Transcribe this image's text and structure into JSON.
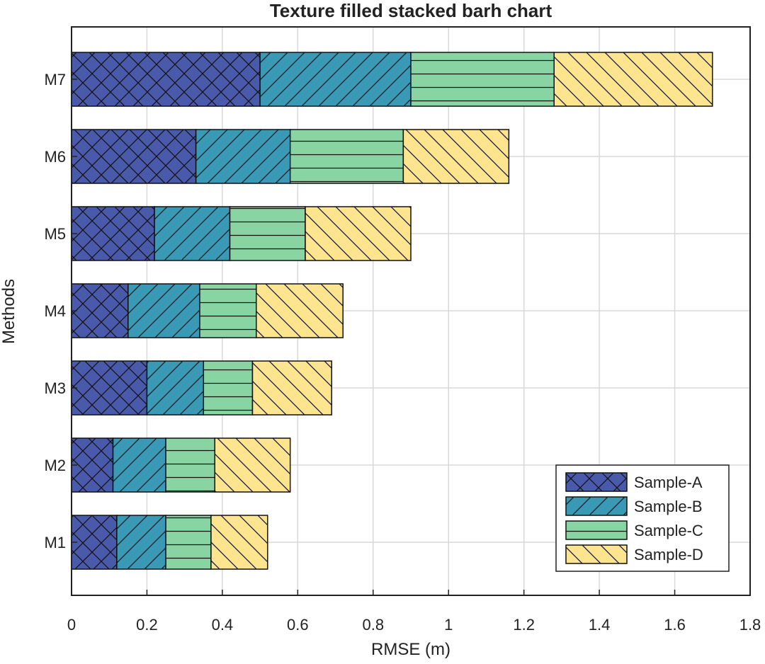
{
  "chart_data": {
    "type": "bar",
    "orientation": "horizontal",
    "stacked": true,
    "title": "Texture filled stacked barh chart",
    "xlabel": "RMSE (m)",
    "ylabel": "Methods",
    "xlim": [
      0,
      1.8
    ],
    "xticks": [
      "0",
      "0.2",
      "0.4",
      "0.6",
      "0.8",
      "1",
      "1.2",
      "1.4",
      "1.6",
      "1.8"
    ],
    "categories": [
      "M1",
      "M2",
      "M3",
      "M4",
      "M5",
      "M6",
      "M7"
    ],
    "grid": true,
    "legend_position": "bottom-right",
    "series": [
      {
        "name": "Sample-A",
        "color": "#4a5aaa",
        "pattern": "crosshatch",
        "values": [
          0.12,
          0.11,
          0.2,
          0.15,
          0.22,
          0.33,
          0.5
        ]
      },
      {
        "name": "Sample-B",
        "color": "#3a9ab6",
        "pattern": "forward-diagonal",
        "values": [
          0.13,
          0.14,
          0.15,
          0.19,
          0.2,
          0.25,
          0.4
        ]
      },
      {
        "name": "Sample-C",
        "color": "#88d4a2",
        "pattern": "horizontal",
        "values": [
          0.12,
          0.13,
          0.13,
          0.15,
          0.2,
          0.3,
          0.38
        ]
      },
      {
        "name": "Sample-D",
        "color": "#fde48e",
        "pattern": "back-diagonal",
        "values": [
          0.15,
          0.2,
          0.21,
          0.23,
          0.28,
          0.28,
          0.42
        ]
      }
    ]
  }
}
